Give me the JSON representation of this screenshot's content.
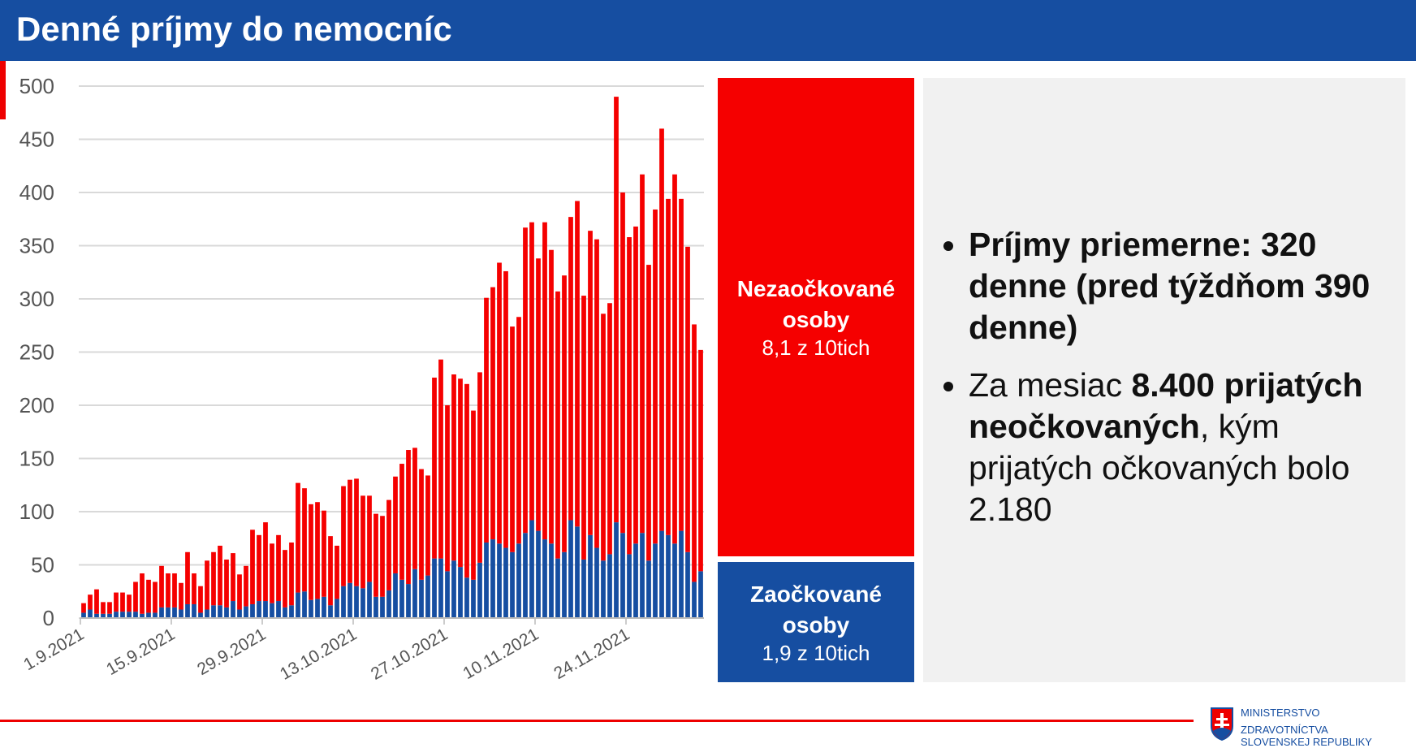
{
  "header": {
    "title": "Denné príjmy do nemocníc"
  },
  "chart_data": {
    "type": "bar",
    "stacked": true,
    "title": "Denné príjmy do nemocníc",
    "ylim": [
      0,
      500
    ],
    "yticks": [
      0,
      50,
      100,
      150,
      200,
      250,
      300,
      350,
      400,
      450,
      500
    ],
    "xtick_labels": [
      "1.9.2021",
      "15.9.2021",
      "29.9.2021",
      "13.10.2021",
      "27.10.2021",
      "10.11.2021",
      "24.11.2021"
    ],
    "x_start": "1.9.2021",
    "grid": true,
    "series": [
      {
        "name": "Zaočkované osoby",
        "color": "#164ea1",
        "values": [
          5,
          8,
          4,
          4,
          4,
          6,
          6,
          6,
          6,
          4,
          5,
          5,
          10,
          10,
          10,
          8,
          13,
          13,
          5,
          8,
          12,
          12,
          10,
          16,
          8,
          11,
          13,
          16,
          16,
          14,
          16,
          10,
          12,
          24,
          25,
          17,
          18,
          20,
          12,
          18,
          30,
          33,
          30,
          28,
          34,
          20,
          20,
          26,
          42,
          36,
          32,
          46,
          36,
          40,
          56,
          56,
          44,
          54,
          48,
          38,
          36,
          52,
          71,
          74,
          70,
          66,
          62,
          70,
          80,
          92,
          82,
          74,
          70,
          56,
          62,
          92,
          86,
          55,
          78,
          66,
          54,
          60,
          90,
          80,
          60,
          70,
          80,
          54,
          70,
          82,
          78,
          70,
          82,
          62,
          34,
          44
        ]
      },
      {
        "name": "Nezaočkované osoby",
        "color": "#f50000",
        "values": [
          9,
          14,
          23,
          11,
          11,
          18,
          18,
          16,
          28,
          38,
          31,
          29,
          39,
          32,
          32,
          25,
          49,
          29,
          25,
          46,
          50,
          56,
          45,
          45,
          33,
          38,
          70,
          62,
          74,
          56,
          62,
          54,
          59,
          103,
          97,
          90,
          91,
          81,
          65,
          50,
          94,
          97,
          101,
          87,
          81,
          78,
          76,
          85,
          91,
          109,
          126,
          114,
          104,
          94,
          170,
          187,
          156,
          175,
          177,
          182,
          159,
          179,
          230,
          237,
          264,
          260,
          212,
          213,
          287,
          280,
          256,
          298,
          276,
          251,
          260,
          285,
          306,
          248,
          286,
          290,
          232,
          236,
          400,
          320,
          298,
          298,
          337,
          278,
          314,
          378,
          316,
          347,
          312,
          287,
          242,
          208
        ]
      }
    ]
  },
  "legend": {
    "unvaccinated": {
      "label": "Nezaočkované osoby",
      "share": "8,1 z 10tich"
    },
    "vaccinated": {
      "label": "Zaočkované osoby",
      "share": "1,9 z 10tich"
    }
  },
  "bullets": {
    "b1": "Príjmy priemerne: 320 denne (pred týždňom 390 denne)",
    "b2_pre": "Za mesiac ",
    "b2_bold": "8.400 prijatých neočkovaných",
    "b2_post": ", kým prijatých očkovaných bolo 2.180"
  },
  "logo": {
    "line1": "MINISTERSTVO",
    "line2": "ZDRAVOTNÍCTVA",
    "line3": "SLOVENSKEJ REPUBLIKY"
  }
}
